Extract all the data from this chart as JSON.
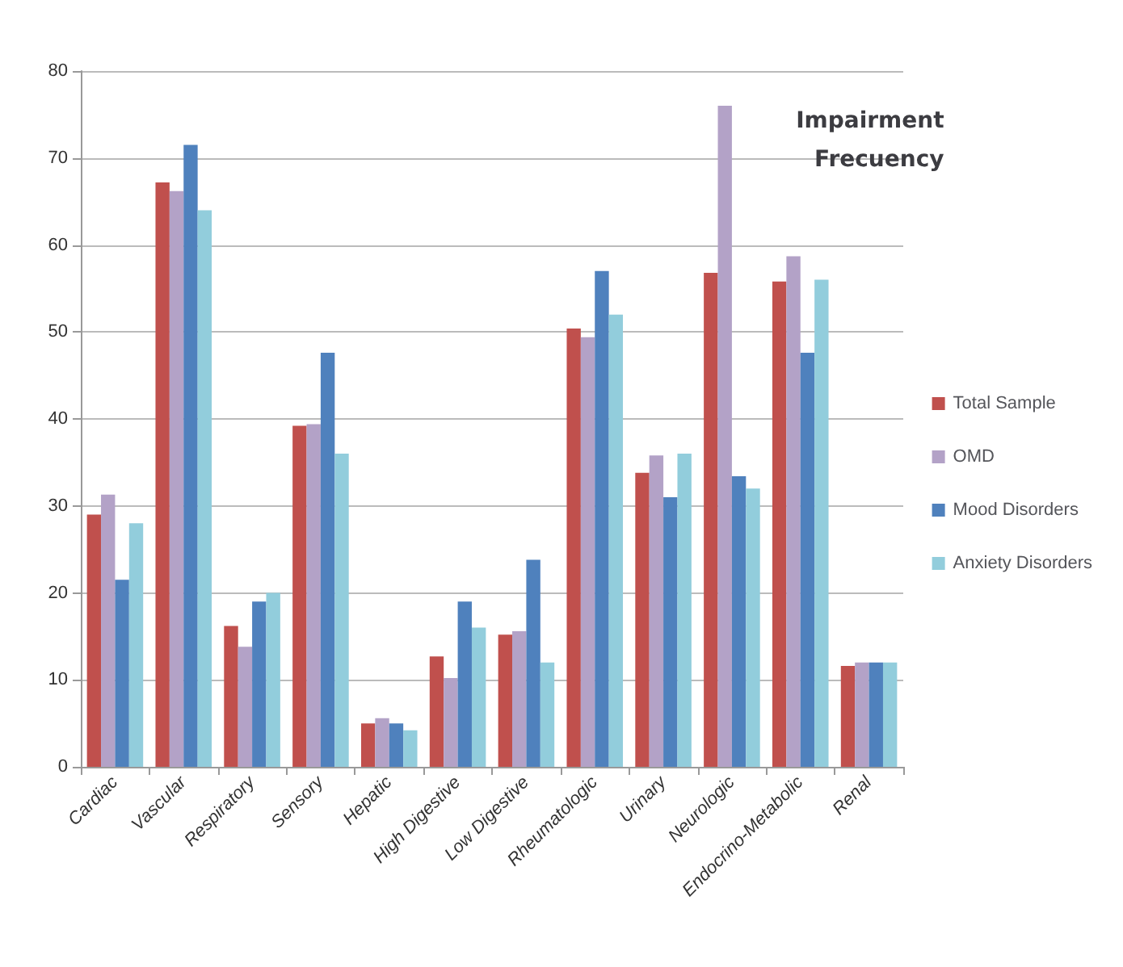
{
  "chart_data": {
    "type": "bar",
    "title": "Impairment\nFrecuency",
    "categories": [
      "Cardiac",
      "Vascular",
      "Respiratory",
      "Sensory",
      "Hepatic",
      "High Digestive",
      "Low Digestive",
      "Rheumatologic",
      "Urinary",
      "Neurologic",
      "Endocrino-Metabolic",
      "Renal"
    ],
    "series": [
      {
        "name": "Total Sample",
        "color": "#c0504d",
        "values": [
          29,
          67.2,
          16.2,
          39.2,
          5,
          12.7,
          15.2,
          50.4,
          33.8,
          56.8,
          55.8,
          11.6
        ]
      },
      {
        "name": "OMD",
        "color": "#b3a2c7",
        "values": [
          31.3,
          66.2,
          13.8,
          39.4,
          5.6,
          10.2,
          15.6,
          49.4,
          35.8,
          76,
          58.7,
          12
        ]
      },
      {
        "name": "Mood Disorders",
        "color": "#4f81bd",
        "values": [
          21.5,
          71.5,
          19,
          47.6,
          5,
          19,
          23.8,
          57,
          31,
          33.4,
          47.6,
          12
        ]
      },
      {
        "name": "Anxiety Disorders",
        "color": "#92cddc",
        "values": [
          28,
          64,
          20,
          36,
          4.2,
          16,
          12,
          52,
          36,
          32,
          56,
          12
        ]
      }
    ],
    "ylim": [
      0,
      80
    ],
    "yticks": [
      0,
      10,
      20,
      30,
      40,
      50,
      60,
      70,
      80
    ],
    "grid": "y",
    "legend": "right"
  }
}
